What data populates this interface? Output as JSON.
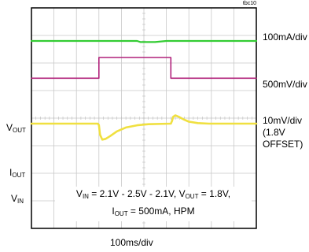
{
  "chart_data": {
    "type": "line",
    "figure_id": "tbc10",
    "xlabel": "100ms/div",
    "conditions": {
      "line1": [
        "V",
        "IN",
        " = 2.1V - 2.5V - 2.1V, V",
        "OUT",
        " = 1.8V,"
      ],
      "line2": [
        "I",
        "OUT",
        " = 500mA, HPM"
      ]
    },
    "grid": {
      "divisions_x": 10,
      "divisions_y": 8
    },
    "channels": [
      {
        "id": "iout",
        "color": "#33cc33",
        "scale": "100mA/div",
        "left_label": [
          "I",
          "OUT"
        ],
        "x": [
          0,
          4.7,
          4.85,
          5.5,
          6.0,
          10
        ],
        "y": [
          6.8,
          6.8,
          6.76,
          6.76,
          6.8,
          6.8
        ]
      },
      {
        "id": "vin",
        "color": "#b0207a",
        "scale": "500mV/div",
        "left_label": [
          "V",
          "IN"
        ],
        "x": [
          0,
          3.0,
          3.0,
          6.2,
          6.2,
          10
        ],
        "y": [
          5.45,
          5.45,
          6.2,
          6.2,
          5.45,
          5.45
        ]
      },
      {
        "id": "vout",
        "color": "#f0e040",
        "scale": "10mV/div",
        "scale_note": [
          "(1.8V",
          "OFFSET)"
        ],
        "left_label": [
          "V",
          "OUT"
        ],
        "x": [
          0,
          2.95,
          3.0,
          3.05,
          3.15,
          3.3,
          3.5,
          3.8,
          4.2,
          4.7,
          5.2,
          6.2,
          6.25,
          6.3,
          6.4,
          6.55,
          6.75,
          7.0,
          7.4,
          7.9,
          8.5,
          10
        ],
        "y": [
          3.8,
          3.8,
          3.75,
          3.4,
          3.22,
          3.25,
          3.35,
          3.52,
          3.66,
          3.74,
          3.78,
          3.8,
          3.9,
          4.05,
          4.1,
          4.05,
          3.96,
          3.87,
          3.82,
          3.8,
          3.8,
          3.8
        ]
      }
    ]
  }
}
